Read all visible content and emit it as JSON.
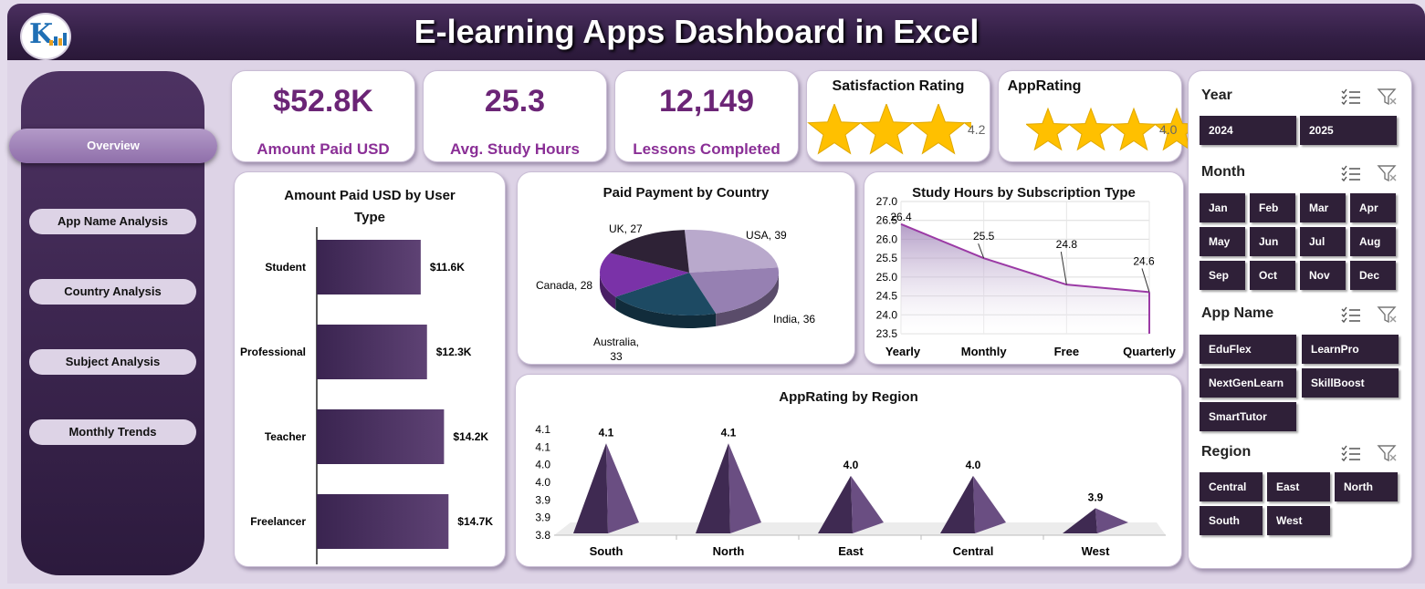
{
  "header": {
    "title": "E-learning Apps Dashboard in Excel"
  },
  "nav": {
    "items": [
      {
        "label": "Overview",
        "active": true
      },
      {
        "label": "App Name Analysis",
        "active": false
      },
      {
        "label": "Country Analysis",
        "active": false
      },
      {
        "label": "Subject Analysis",
        "active": false
      },
      {
        "label": "Monthly Trends",
        "active": false
      }
    ]
  },
  "kpis": [
    {
      "value": "$52.8K",
      "label": "Amount Paid USD"
    },
    {
      "value": "25.3",
      "label": "Avg. Study Hours"
    },
    {
      "value": "12,149",
      "label": "Lessons Completed"
    }
  ],
  "ratings": [
    {
      "title": "Satisfaction Rating",
      "value": "4.2",
      "rating": 4.2,
      "max": 5
    },
    {
      "title": "AppRating",
      "value": "4.0",
      "rating": 4.0,
      "max": 5
    }
  ],
  "colors": {
    "accent": "#6b2576",
    "bar": "#4f3563",
    "star": "#ffc000",
    "chip": "#2f2038",
    "line": "#9b3aa5"
  },
  "chart_data": [
    {
      "type": "bar",
      "title": "Amount Paid USD by User Type",
      "categories": [
        "Student",
        "Professional",
        "Teacher",
        "Freelancer"
      ],
      "values": [
        11.6,
        12.3,
        14.2,
        14.7
      ],
      "data_labels": [
        "$11.6K",
        "$12.3K",
        "$14.2K",
        "$14.7K"
      ],
      "orientation": "horizontal"
    },
    {
      "type": "pie",
      "title": "Paid Payment by Country",
      "labels": [
        "USA",
        "India",
        "Australia",
        "Canada",
        "UK"
      ],
      "values": [
        39,
        36,
        33,
        28,
        27
      ],
      "data_labels": [
        "USA, 39",
        "India, 36",
        "Australia, 33",
        "Canada, 28",
        "UK, 27"
      ],
      "colors": [
        "#b9a9cc",
        "#9680b2",
        "#1d4a63",
        "#7a32a8",
        "#2e2236"
      ]
    },
    {
      "type": "area",
      "title": "Study Hours by Subscription Type",
      "categories": [
        "Yearly",
        "Monthly",
        "Free",
        "Quarterly"
      ],
      "values": [
        26.4,
        25.5,
        24.8,
        24.6
      ],
      "data_labels": [
        "26.4",
        "25.5",
        "24.8",
        "24.6"
      ],
      "ylim": [
        23.5,
        27.0
      ],
      "yticks": [
        "27.0",
        "26.5",
        "26.0",
        "25.5",
        "25.0",
        "24.5",
        "24.0",
        "23.5"
      ],
      "grid": true
    },
    {
      "type": "bar",
      "title": "AppRating by Region",
      "categories": [
        "South",
        "North",
        "East",
        "Central",
        "West"
      ],
      "values": [
        4.1,
        4.1,
        4.0,
        4.0,
        3.9
      ],
      "data_labels": [
        "4.1",
        "4.1",
        "4.0",
        "4.0",
        "3.9"
      ],
      "ylim": [
        3.8,
        4.1
      ],
      "yticks": [
        "4.1",
        "4.1",
        "4.0",
        "4.0",
        "3.9",
        "3.9",
        "3.8"
      ],
      "shape": "pyramid"
    }
  ],
  "slicers": [
    {
      "title": "Year",
      "items": [
        "2024",
        "2025"
      ]
    },
    {
      "title": "Month",
      "items": [
        "Jan",
        "Feb",
        "Mar",
        "Apr",
        "May",
        "Jun",
        "Jul",
        "Aug",
        "Sep",
        "Oct",
        "Nov",
        "Dec"
      ]
    },
    {
      "title": "App Name",
      "items": [
        "EduFlex",
        "LearnPro",
        "NextGenLearn",
        "SkillBoost",
        "SmartTutor"
      ]
    },
    {
      "title": "Region",
      "items": [
        "Central",
        "East",
        "North",
        "South",
        "West"
      ]
    }
  ]
}
